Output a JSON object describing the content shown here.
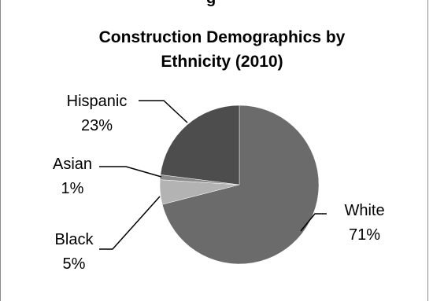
{
  "chart_data": {
    "type": "pie",
    "title_lines": [
      "Construction Demographics by",
      "Ethnicity (2010)"
    ],
    "top_fragment": "g",
    "slices": [
      {
        "name": "White",
        "label": "White",
        "percent_label": "71%",
        "value": 71,
        "color": "#6b6b6b"
      },
      {
        "name": "Black",
        "label": "Black",
        "percent_label": "5%",
        "value": 5,
        "color": "#b3b3b3"
      },
      {
        "name": "Asian",
        "label": "Asian",
        "percent_label": "1%",
        "value": 1,
        "color": "#8c8c8c"
      },
      {
        "name": "Hispanic",
        "label": "Hispanic",
        "percent_label": "23%",
        "value": 23,
        "color": "#4d4d4d"
      }
    ],
    "legend": "none",
    "grid": false
  }
}
